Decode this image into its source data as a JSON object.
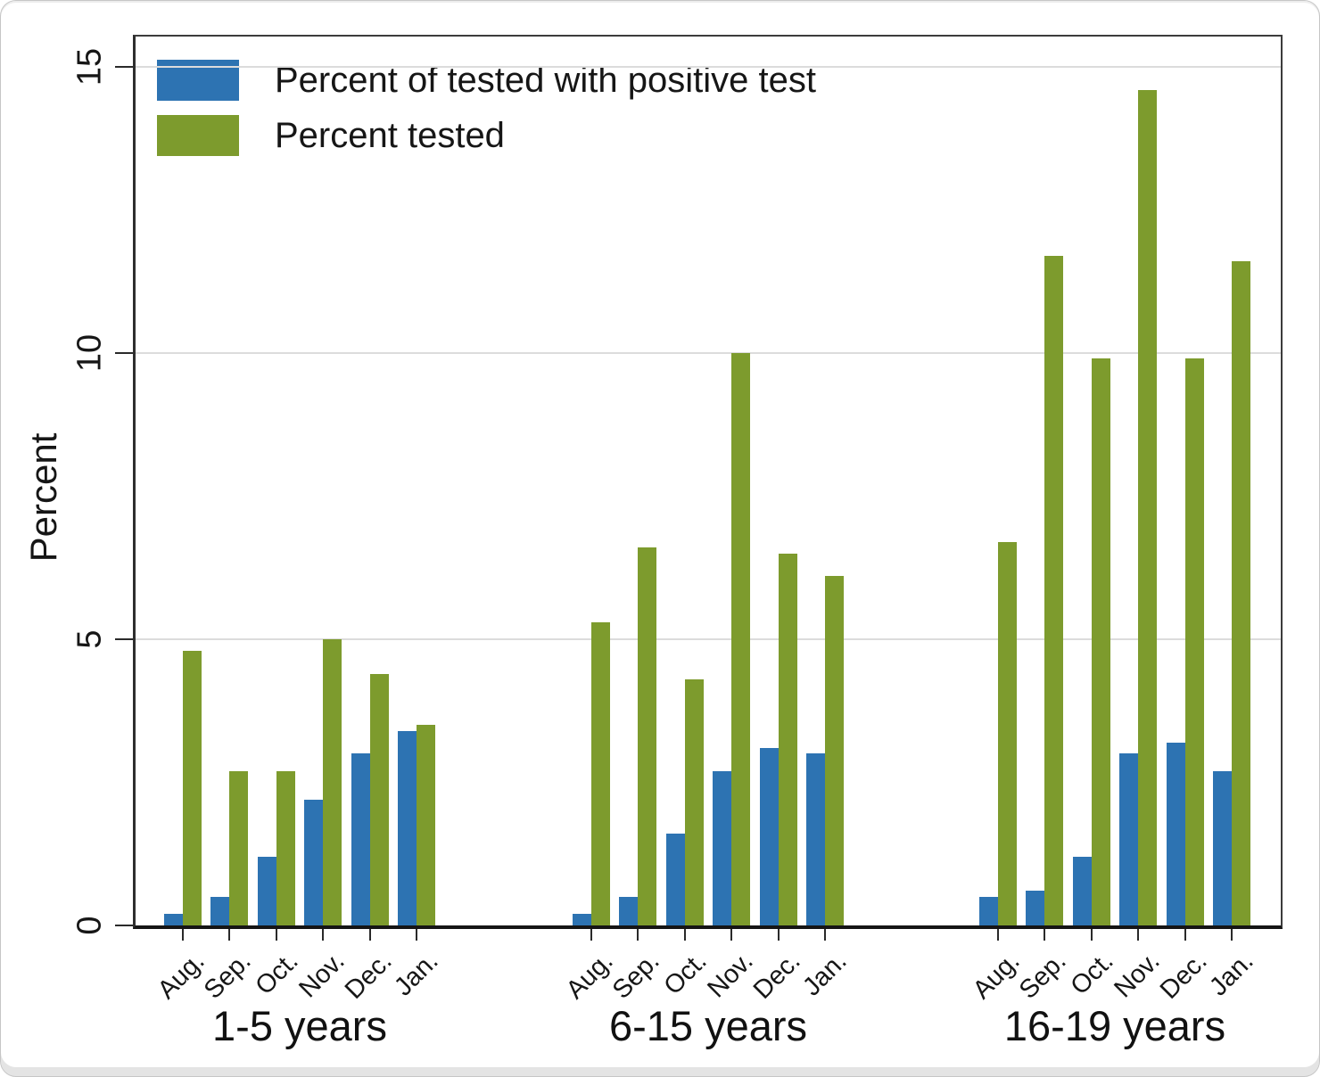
{
  "chart_data": {
    "type": "bar",
    "title": "",
    "ylabel": "Percent",
    "ylim": [
      0,
      15.6
    ],
    "yticks": [
      0,
      5,
      10,
      15
    ],
    "grid": "horizontal gridlines at 5, 10, 15",
    "legend_position": "top-left inside plot area",
    "categories": [
      "Aug.",
      "Sep.",
      "Oct.",
      "Nov.",
      "Dec.",
      "Jan."
    ],
    "group_labels": [
      "1-5 years",
      "6-15 years",
      "16-19 years"
    ],
    "legend": [
      {
        "label": "Percent of tested with positive test",
        "color": "#2d73b2"
      },
      {
        "label": "Percent tested",
        "color": "#7d9b2d"
      }
    ],
    "groups": [
      {
        "label": "1-5 years",
        "series": [
          {
            "name": "Percent of tested with positive test",
            "values": [
              0.2,
              0.5,
              1.2,
              2.2,
              3.0,
              3.4
            ]
          },
          {
            "name": "Percent tested",
            "values": [
              4.8,
              2.7,
              2.7,
              5.0,
              4.4,
              3.5
            ]
          }
        ]
      },
      {
        "label": "6-15 years",
        "series": [
          {
            "name": "Percent of tested with positive test",
            "values": [
              0.2,
              0.5,
              1.6,
              2.7,
              3.1,
              3.0
            ]
          },
          {
            "name": "Percent tested",
            "values": [
              5.3,
              6.6,
              4.3,
              10.0,
              6.5,
              6.1
            ]
          }
        ]
      },
      {
        "label": "16-19 years",
        "series": [
          {
            "name": "Percent of tested with positive test",
            "values": [
              0.5,
              0.6,
              1.2,
              3.0,
              3.2,
              2.7
            ]
          },
          {
            "name": "Percent tested",
            "values": [
              6.7,
              11.7,
              9.9,
              14.6,
              9.9,
              11.6
            ]
          }
        ]
      }
    ]
  }
}
